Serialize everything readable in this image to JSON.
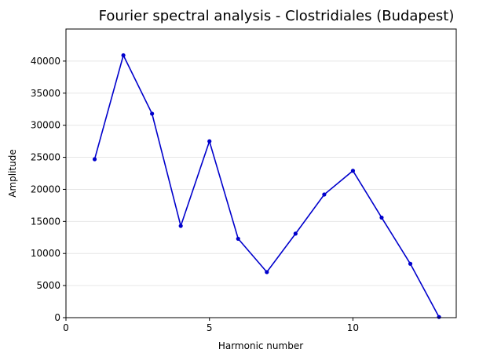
{
  "chart_data": {
    "type": "line",
    "title": "Fourier spectral analysis - Clostridiales (Budapest)",
    "xlabel": "Harmonic number",
    "ylabel": "Amplitude",
    "xlim": [
      0,
      13.6
    ],
    "ylim": [
      0,
      45000
    ],
    "x_ticks": [
      0,
      5,
      10
    ],
    "y_ticks": [
      0,
      5000,
      10000,
      15000,
      20000,
      25000,
      30000,
      35000,
      40000
    ],
    "grid": "horizontal",
    "series": [
      {
        "color": "#0000cc",
        "marker": "dot",
        "x": [
          1,
          2,
          3,
          4,
          5,
          6,
          7,
          8,
          9,
          10,
          11,
          12,
          13
        ],
        "y": [
          24700,
          40900,
          31800,
          14300,
          27500,
          12300,
          7100,
          13100,
          19200,
          22900,
          15600,
          8400,
          100
        ]
      }
    ]
  }
}
